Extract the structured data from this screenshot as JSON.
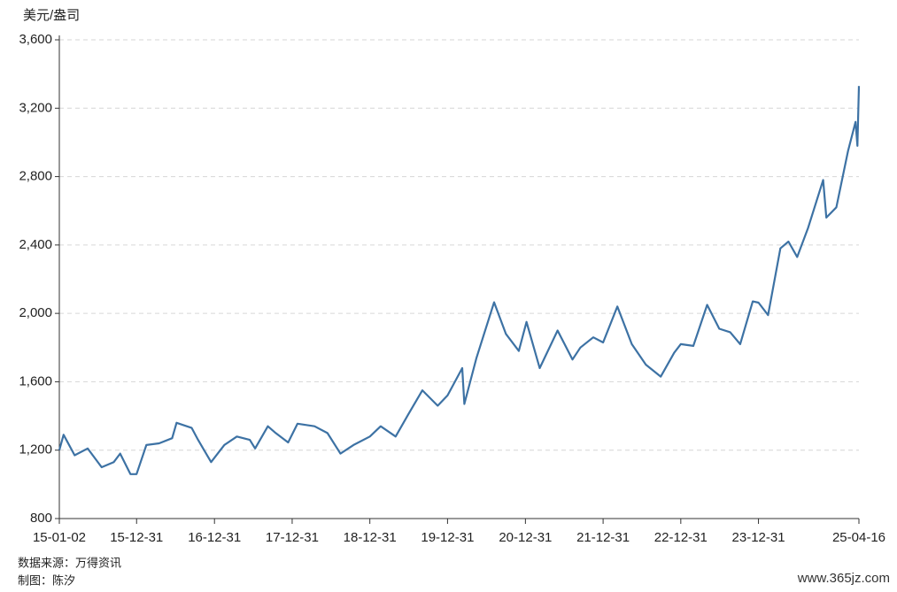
{
  "chart_data": {
    "type": "line",
    "y_label": "美元/盎司",
    "source": "数据来源：万得资讯",
    "maker": "制图：陈汐",
    "watermark": "www.365jz.com",
    "ylim": [
      800,
      3600
    ],
    "yticks": [
      {
        "value": 800,
        "label": "800"
      },
      {
        "value": 1200,
        "label": "1,200"
      },
      {
        "value": 1600,
        "label": "1,600"
      },
      {
        "value": 2000,
        "label": "2,000"
      },
      {
        "value": 2400,
        "label": "2,400"
      },
      {
        "value": 2800,
        "label": "2,800"
      },
      {
        "value": 3200,
        "label": "3,200"
      },
      {
        "value": 3600,
        "label": "3,600"
      }
    ],
    "xlim": [
      "15-01-02",
      "25-04-16"
    ],
    "xticks": [
      "15-01-02",
      "15-12-31",
      "16-12-31",
      "17-12-31",
      "18-12-31",
      "19-12-31",
      "20-12-31",
      "21-12-31",
      "22-12-31",
      "23-12-31",
      "25-04-16"
    ],
    "grid": true,
    "series": [
      {
        "color": "#3d72a4",
        "x": [
          "15-01-02",
          "15-01-22",
          "15-03-15",
          "15-05-15",
          "15-07-20",
          "15-09-15",
          "15-10-15",
          "15-12-02",
          "15-12-31",
          "16-02-15",
          "16-04-15",
          "16-06-15",
          "16-07-06",
          "16-09-15",
          "16-10-15",
          "16-12-15",
          "17-02-15",
          "17-04-15",
          "17-06-15",
          "17-07-10",
          "17-09-08",
          "17-10-15",
          "17-12-12",
          "18-01-25",
          "18-04-15",
          "18-06-15",
          "18-08-15",
          "18-10-15",
          "18-12-31",
          "19-02-20",
          "19-05-01",
          "19-06-30",
          "19-09-04",
          "19-11-15",
          "19-12-31",
          "20-03-09",
          "20-03-19",
          "20-05-15",
          "20-08-06",
          "20-09-30",
          "20-11-30",
          "21-01-05",
          "21-03-08",
          "21-05-31",
          "21-08-09",
          "21-09-15",
          "21-11-15",
          "21-12-31",
          "22-03-08",
          "22-05-15",
          "22-07-20",
          "22-09-28",
          "22-11-30",
          "22-12-31",
          "23-02-28",
          "23-05-04",
          "23-06-30",
          "23-08-20",
          "23-10-06",
          "23-12-04",
          "23-12-31",
          "24-02-14",
          "24-04-12",
          "24-05-20",
          "24-06-30",
          "24-08-20",
          "24-10-30",
          "24-11-14",
          "24-12-31",
          "25-02-24",
          "25-03-31",
          "25-04-09",
          "25-04-16"
        ],
        "values": [
          1200,
          1290,
          1170,
          1210,
          1100,
          1130,
          1180,
          1060,
          1060,
          1230,
          1240,
          1270,
          1360,
          1330,
          1260,
          1130,
          1230,
          1280,
          1260,
          1210,
          1340,
          1300,
          1245,
          1355,
          1340,
          1300,
          1180,
          1230,
          1280,
          1340,
          1280,
          1410,
          1550,
          1460,
          1520,
          1680,
          1470,
          1740,
          2065,
          1880,
          1780,
          1950,
          1680,
          1900,
          1730,
          1800,
          1860,
          1830,
          2040,
          1820,
          1700,
          1630,
          1770,
          1820,
          1810,
          2050,
          1910,
          1890,
          1820,
          2070,
          2063,
          1990,
          2380,
          2420,
          2330,
          2500,
          2780,
          2560,
          2620,
          2950,
          3120,
          2980,
          3330
        ]
      }
    ]
  }
}
